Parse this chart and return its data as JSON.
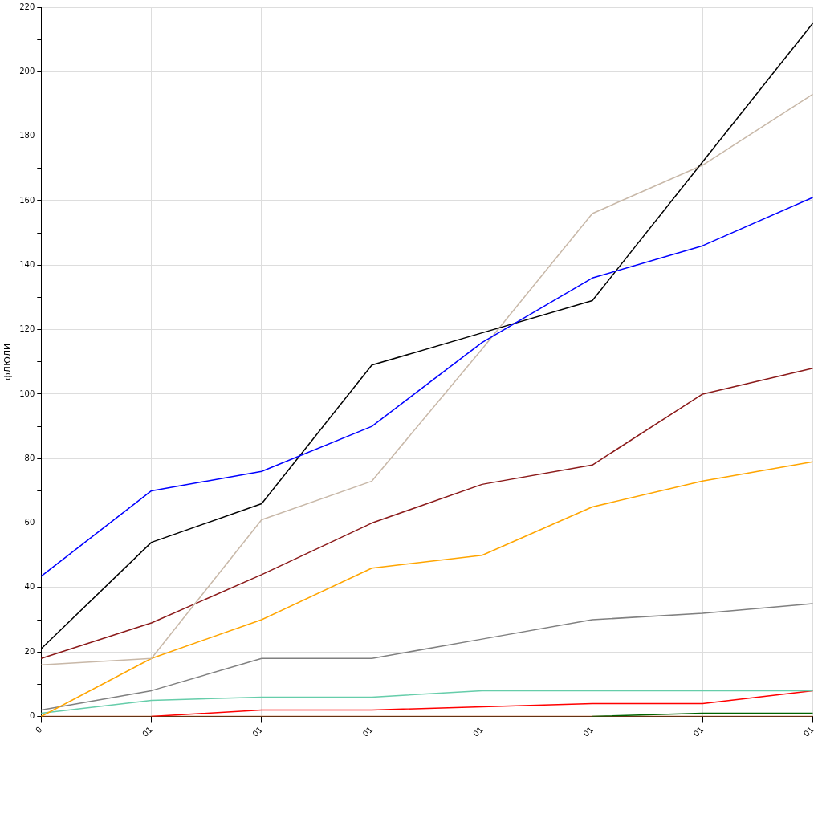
{
  "chart_data": {
    "type": "line",
    "ylabel": "фЛЮЛИ",
    "categories": [
      "0",
      "01",
      "01",
      "01",
      "01",
      "01",
      "01",
      "01"
    ],
    "series": [
      {
        "color": "#0000ff",
        "values": [
          43.5,
          70,
          76,
          90,
          116,
          136,
          146,
          161
        ]
      },
      {
        "color": "#000000",
        "values": [
          21,
          54,
          66,
          109,
          119,
          129,
          172,
          215
        ]
      },
      {
        "color": "#c8b8a8",
        "values": [
          16,
          18,
          61,
          73,
          114,
          156,
          171,
          193
        ]
      },
      {
        "color": "#8b1a1a",
        "values": [
          18,
          29,
          44,
          60,
          72,
          78,
          100,
          108
        ]
      },
      {
        "color": "#ffa500",
        "values": [
          0,
          18,
          30,
          46,
          50,
          65,
          73,
          79
        ]
      },
      {
        "color": "#808080",
        "values": [
          2,
          8,
          18,
          18,
          24,
          30,
          32,
          35
        ]
      },
      {
        "color": "#66cdaa",
        "values": [
          1,
          5,
          6,
          6,
          8,
          8,
          8,
          8
        ]
      },
      {
        "color": "#ff0000",
        "values": [
          null,
          0,
          2,
          2,
          3,
          4,
          4,
          8
        ]
      },
      {
        "color": "#006400",
        "values": [
          null,
          null,
          null,
          null,
          null,
          0,
          1,
          1
        ]
      },
      {
        "color": "#c86428",
        "values": [
          0,
          0,
          0,
          0,
          0,
          0,
          0,
          0
        ]
      }
    ],
    "ylim": [
      0,
      220
    ],
    "yticks": [
      0,
      {
        "value": 10,
        "label": null
      },
      20,
      {
        "value": 30,
        "label": null
      },
      40,
      {
        "value": 50,
        "label": null
      },
      60,
      {
        "value": 70,
        "label": null
      },
      80,
      {
        "value": 90,
        "label": null
      },
      100,
      {
        "value": 110,
        "label": null
      },
      120,
      {
        "value": 130,
        "label": null
      },
      140,
      {
        "value": 150,
        "label": null
      },
      160,
      {
        "value": 170,
        "label": null
      },
      180,
      {
        "value": 190,
        "label": null
      },
      200,
      {
        "value": 210,
        "label": null
      },
      220
    ],
    "grid": true,
    "line_style": "solid",
    "marker": "none",
    "legend": false
  }
}
